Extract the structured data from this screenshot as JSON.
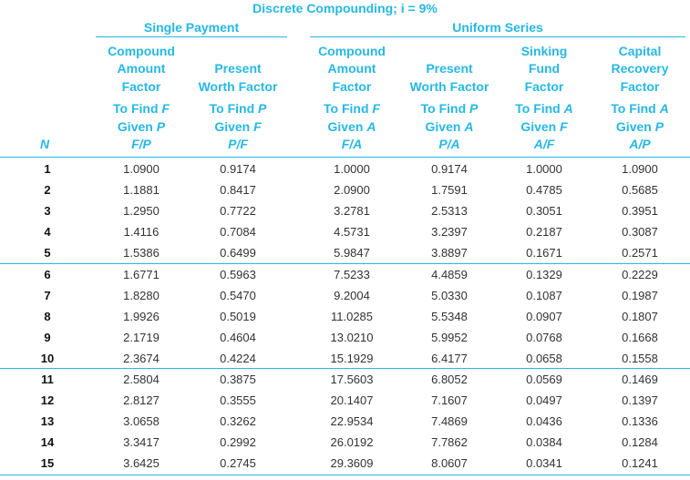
{
  "title": "Discrete Compounding; i = 9%",
  "groups": {
    "single": "Single Payment",
    "uniform": "Uniform Series"
  },
  "n_label": "N",
  "columns": [
    {
      "name": [
        "Compound",
        "Amount",
        "Factor"
      ],
      "find": [
        "To Find F",
        "Given P"
      ],
      "symbol": "F/P"
    },
    {
      "name": [
        "",
        "Present",
        "Worth Factor"
      ],
      "find": [
        "To Find P",
        "Given F"
      ],
      "symbol": "P/F"
    },
    {
      "name": [
        "Compound",
        "Amount",
        "Factor"
      ],
      "find": [
        "To Find F",
        "Given A"
      ],
      "symbol": "F/A"
    },
    {
      "name": [
        "",
        "Present",
        "Worth Factor"
      ],
      "find": [
        "To Find P",
        "Given A"
      ],
      "symbol": "P/A"
    },
    {
      "name": [
        "Sinking",
        "Fund",
        "Factor"
      ],
      "find": [
        "To Find A",
        "Given F"
      ],
      "symbol": "A/F"
    },
    {
      "name": [
        "Capital",
        "Recovery",
        "Factor"
      ],
      "find": [
        "To Find A",
        "Given P"
      ],
      "symbol": "A/P"
    }
  ],
  "rows": [
    [
      "1",
      "1.0900",
      "0.9174",
      "1.0000",
      "0.9174",
      "1.0000",
      "1.0900"
    ],
    [
      "2",
      "1.1881",
      "0.8417",
      "2.0900",
      "1.7591",
      "0.4785",
      "0.5685"
    ],
    [
      "3",
      "1.2950",
      "0.7722",
      "3.2781",
      "2.5313",
      "0.3051",
      "0.3951"
    ],
    [
      "4",
      "1.4116",
      "0.7084",
      "4.5731",
      "3.2397",
      "0.2187",
      "0.3087"
    ],
    [
      "5",
      "1.5386",
      "0.6499",
      "5.9847",
      "3.8897",
      "0.1671",
      "0.2571"
    ],
    [
      "6",
      "1.6771",
      "0.5963",
      "7.5233",
      "4.4859",
      "0.1329",
      "0.2229"
    ],
    [
      "7",
      "1.8280",
      "0.5470",
      "9.2004",
      "5.0330",
      "0.1087",
      "0.1987"
    ],
    [
      "8",
      "1.9926",
      "0.5019",
      "11.0285",
      "5.5348",
      "0.0907",
      "0.1807"
    ],
    [
      "9",
      "2.1719",
      "0.4604",
      "13.0210",
      "5.9952",
      "0.0768",
      "0.1668"
    ],
    [
      "10",
      "2.3674",
      "0.4224",
      "15.1929",
      "6.4177",
      "0.0658",
      "0.1558"
    ],
    [
      "11",
      "2.5804",
      "0.3875",
      "17.5603",
      "6.8052",
      "0.0569",
      "0.1469"
    ],
    [
      "12",
      "2.8127",
      "0.3555",
      "20.1407",
      "7.1607",
      "0.0497",
      "0.1397"
    ],
    [
      "13",
      "3.0658",
      "0.3262",
      "22.9534",
      "7.4869",
      "0.0436",
      "0.1336"
    ],
    [
      "14",
      "3.3417",
      "0.2992",
      "26.0192",
      "7.7862",
      "0.0384",
      "0.1284"
    ],
    [
      "15",
      "3.6425",
      "0.2745",
      "29.3609",
      "8.0607",
      "0.0341",
      "0.1241"
    ]
  ]
}
